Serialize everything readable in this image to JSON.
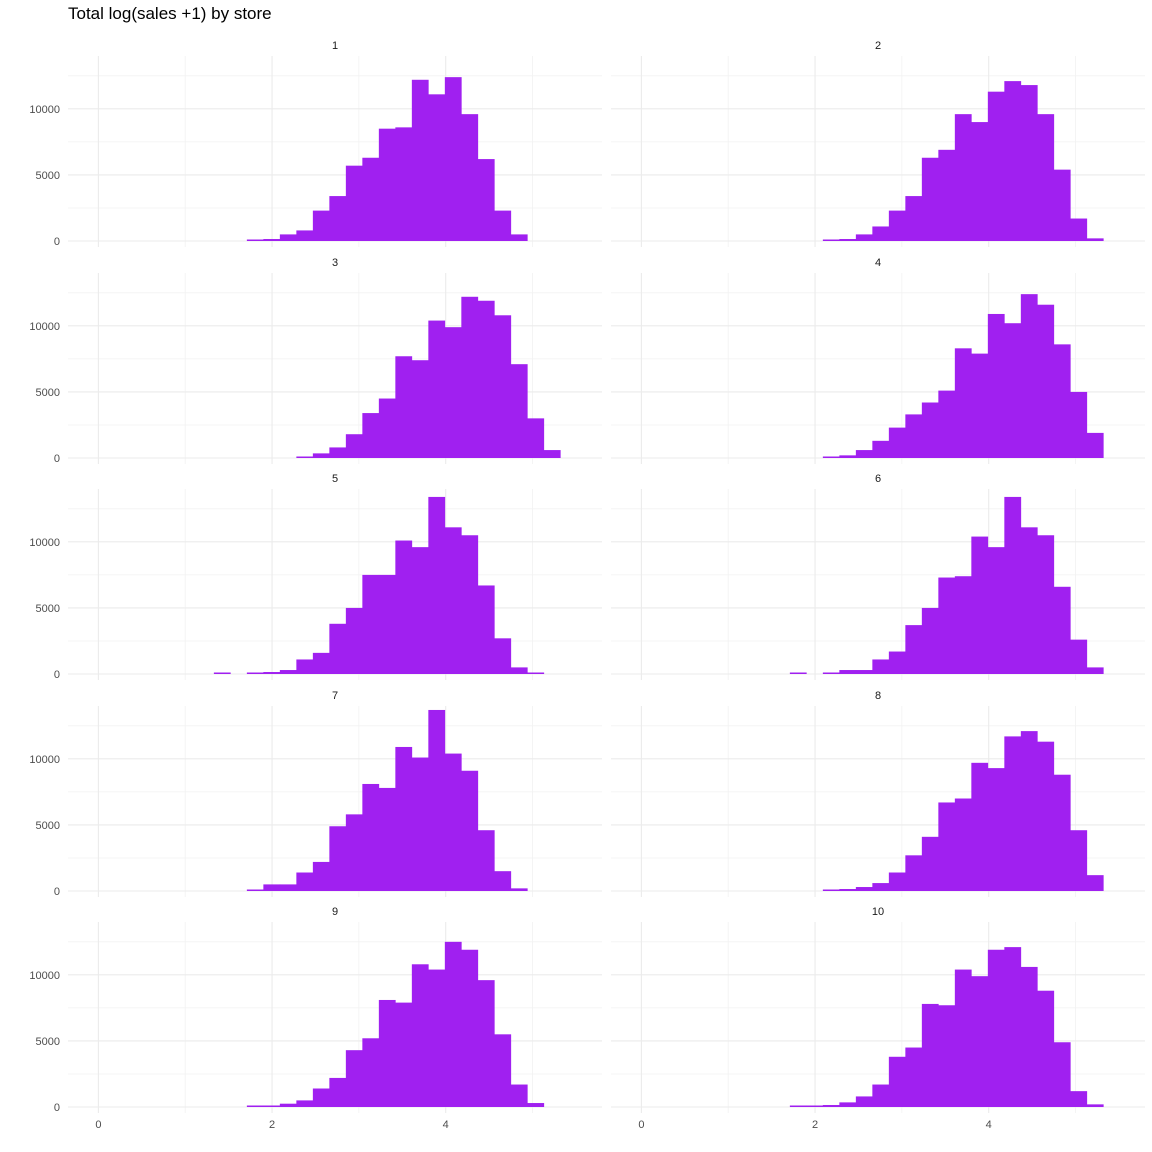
{
  "chart_data": {
    "type": "bar",
    "title": "Total log(sales +1) by store",
    "xlabel": "",
    "ylabel": "",
    "fill_color": "#a020f0",
    "grid": true,
    "layout": {
      "columns": 2,
      "rows": 5,
      "shared_axes": true
    },
    "xlim": [
      -0.35,
      5.8
    ],
    "ylim": [
      0,
      14000
    ],
    "xticks": [
      0,
      2,
      4
    ],
    "yticks": [
      0,
      5000,
      10000
    ],
    "bin_width": 0.19,
    "bin_start": 0.095,
    "bins_x": [
      0.095,
      0.285,
      0.475,
      0.665,
      0.855,
      1.045,
      1.235,
      1.425,
      1.615,
      1.805,
      1.995,
      2.185,
      2.375,
      2.565,
      2.755,
      2.945,
      3.135,
      3.325,
      3.515,
      3.705,
      3.895,
      4.085,
      4.275,
      4.465,
      4.655,
      4.845,
      5.035,
      5.225
    ],
    "panels": [
      {
        "label": "1",
        "counts": [
          0,
          0,
          0,
          0,
          0,
          0,
          0,
          0,
          0,
          100,
          150,
          500,
          800,
          2300,
          3400,
          5700,
          6300,
          8500,
          8600,
          12200,
          11100,
          12400,
          9600,
          6200,
          2300,
          500,
          0,
          0
        ]
      },
      {
        "label": "2",
        "counts": [
          0,
          0,
          0,
          0,
          0,
          0,
          0,
          0,
          0,
          0,
          0,
          50,
          150,
          500,
          1100,
          2300,
          3400,
          6300,
          6900,
          9600,
          9000,
          11300,
          12100,
          11800,
          9600,
          5400,
          1700,
          200
        ]
      },
      {
        "label": "3",
        "counts": [
          0,
          0,
          0,
          0,
          0,
          0,
          0,
          0,
          0,
          0,
          0,
          0,
          100,
          350,
          800,
          1800,
          3400,
          4500,
          7700,
          7400,
          10400,
          9900,
          12200,
          11900,
          10800,
          7100,
          3000,
          600
        ]
      },
      {
        "label": "4",
        "counts": [
          0,
          0,
          0,
          0,
          0,
          0,
          0,
          0,
          0,
          0,
          0,
          50,
          200,
          600,
          1300,
          2300,
          3300,
          4200,
          5100,
          8300,
          7900,
          10900,
          10200,
          12400,
          11600,
          8600,
          5000,
          1900
        ]
      },
      {
        "label": "5",
        "counts": [
          0,
          0,
          0,
          0,
          0,
          0,
          0,
          100,
          0,
          50,
          150,
          300,
          1100,
          1600,
          3800,
          5000,
          7500,
          7500,
          10100,
          9600,
          13400,
          11100,
          10500,
          6700,
          2700,
          500,
          50,
          0
        ]
      },
      {
        "label": "6",
        "counts": [
          0,
          0,
          0,
          0,
          0,
          0,
          0,
          0,
          0,
          50,
          0,
          100,
          300,
          300,
          1100,
          1700,
          3700,
          5000,
          7300,
          7400,
          10400,
          9600,
          13400,
          11100,
          10500,
          6600,
          2600,
          500
        ]
      },
      {
        "label": "7",
        "counts": [
          0,
          0,
          0,
          0,
          0,
          0,
          0,
          0,
          0,
          100,
          500,
          500,
          1400,
          2200,
          4900,
          5800,
          8100,
          7800,
          10900,
          10100,
          13700,
          10400,
          9100,
          4600,
          1500,
          200,
          0,
          0
        ]
      },
      {
        "label": "8",
        "counts": [
          0,
          0,
          0,
          0,
          0,
          0,
          0,
          0,
          0,
          0,
          0,
          50,
          150,
          300,
          600,
          1400,
          2700,
          4100,
          6700,
          7000,
          9700,
          9300,
          11700,
          12100,
          11300,
          8800,
          4600,
          1200
        ]
      },
      {
        "label": "9",
        "counts": [
          0,
          0,
          0,
          0,
          0,
          0,
          0,
          0,
          0,
          50,
          100,
          250,
          500,
          1400,
          2200,
          4300,
          5200,
          8100,
          7900,
          10800,
          10400,
          12500,
          11900,
          9600,
          5500,
          1700,
          300,
          0
        ]
      },
      {
        "label": "10",
        "counts": [
          0,
          0,
          0,
          0,
          0,
          0,
          0,
          0,
          0,
          50,
          100,
          150,
          350,
          800,
          1700,
          3800,
          4500,
          7800,
          7700,
          10400,
          9900,
          11900,
          12100,
          10600,
          8800,
          4900,
          1200,
          200
        ]
      }
    ]
  }
}
